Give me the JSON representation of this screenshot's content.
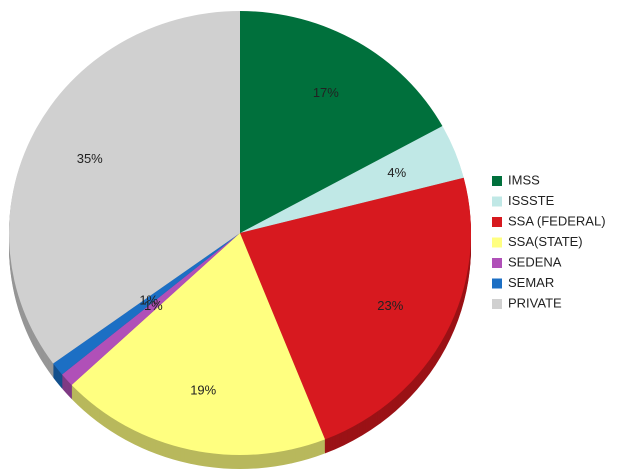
{
  "chart_data": {
    "type": "pie",
    "categories": [
      "IMSS",
      "ISSSTE",
      "SSA (FEDERAL)",
      "SSA(STATE)",
      "SEDENA",
      "SEMAR",
      "PRIVATE"
    ],
    "values": [
      17,
      4,
      23,
      19,
      1,
      1,
      35
    ],
    "value_labels": [
      "17%",
      "4%",
      "23%",
      "19%",
      "1%",
      "1%",
      "35%"
    ],
    "colors": [
      "#00703c",
      "#c0e8e6",
      "#d7191f",
      "#ffff80",
      "#b050b8",
      "#1c6fc4",
      "#d0d0d0"
    ],
    "legend": "right"
  }
}
